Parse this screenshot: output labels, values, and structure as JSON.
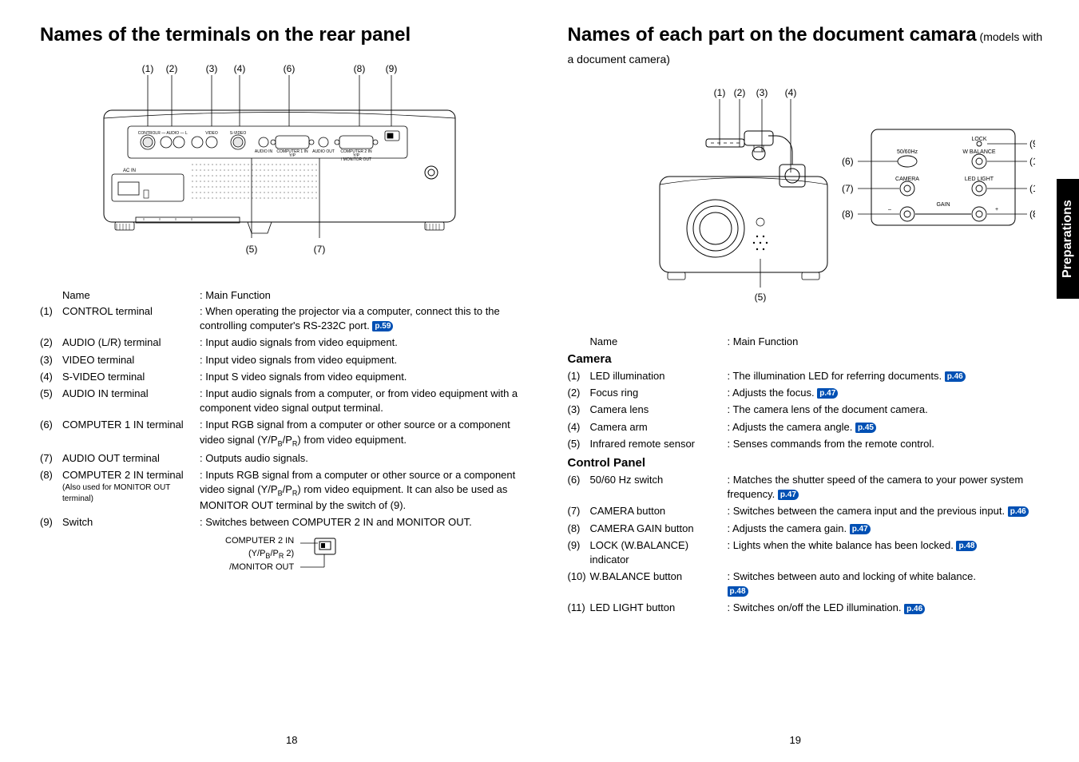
{
  "left": {
    "title": "Names of the terminals on the rear panel",
    "tableHeader": {
      "name": "Name",
      "function": ": Main Function"
    },
    "rows": [
      {
        "num": "(1)",
        "name": "CONTROL terminal",
        "func": ": When operating the projector via a computer, connect this to the controlling computer's RS-232C port.",
        "pref": "p.59"
      },
      {
        "num": "(2)",
        "name": "AUDIO (L/R) terminal",
        "func": ": Input audio signals from video equipment."
      },
      {
        "num": "(3)",
        "name": "VIDEO terminal",
        "func": ": Input video signals from video equipment."
      },
      {
        "num": "(4)",
        "name": "S-VIDEO terminal",
        "func": ": Input S video signals from video equipment."
      },
      {
        "num": "(5)",
        "name": "AUDIO IN terminal",
        "func": ": Input audio signals from a computer, or from video equipment with a component video signal output terminal."
      },
      {
        "num": "(6)",
        "name": "COMPUTER 1 IN terminal",
        "func": ": Input RGB signal from a computer or other source or a component video signal (Y/P",
        "funcTail": ") from video equipment.",
        "sub1": "B",
        "sub2": "R",
        "mid": "/P"
      },
      {
        "num": "(7)",
        "name": "AUDIO OUT terminal",
        "func": ": Outputs audio signals."
      },
      {
        "num": "(8)",
        "name": "COMPUTER 2 IN terminal",
        "note": "(Also used for MONITOR OUT terminal)",
        "func": ": Inputs RGB signal from a computer or other source or a component video signal (Y/P",
        "funcTail": ") rom video equipment. It can also be used as MONITOR OUT terminal by the switch of (9).",
        "sub1": "B",
        "sub2": "R",
        "mid": "/P"
      },
      {
        "num": "(9)",
        "name": "Switch",
        "func": ": Switches between COMPUTER 2 IN and MONITOR OUT."
      }
    ],
    "switchAnnot": {
      "line1a": "COMPUTER 2 IN",
      "line1b": "(Y/P",
      "line1c": "/P",
      "line1d": " 2)",
      "sub1": "B",
      "sub2": "R",
      "line2": "/MONITOR OUT"
    },
    "pageNum": "18"
  },
  "right": {
    "title": "Names of each part on the document camara",
    "subtitle": " (models with a document camera)",
    "tableHeader": {
      "name": "Name",
      "function": ": Main Function"
    },
    "cameraHead": "Camera",
    "cameraRows": [
      {
        "num": "(1)",
        "name": "LED illumination",
        "func": ": The illumination LED for referring documents.",
        "pref": "p.46"
      },
      {
        "num": "(2)",
        "name": "Focus ring",
        "func": ": Adjusts the focus.",
        "pref": "p.47"
      },
      {
        "num": "(3)",
        "name": "Camera lens",
        "func": ": The camera lens of the document camera."
      },
      {
        "num": "(4)",
        "name": "Camera arm",
        "func": ": Adjusts the camera angle.",
        "pref": "p.45"
      },
      {
        "num": "(5)",
        "name": "Infrared remote sensor",
        "func": ": Senses commands from the remote control."
      }
    ],
    "controlHead": "Control Panel",
    "controlRows": [
      {
        "num": "(6)",
        "name": "50/60 Hz switch",
        "func": ": Matches the shutter speed of the camera to your power system frequency.",
        "pref": "p.47"
      },
      {
        "num": "(7)",
        "name": "CAMERA button",
        "func": ": Switches between the camera input and the previous input.",
        "pref": "p.46"
      },
      {
        "num": "(8)",
        "name": "CAMERA GAIN button",
        "func": ": Adjusts the camera gain.",
        "pref": "p.47"
      },
      {
        "num": "(9)",
        "name": "LOCK (W.BALANCE) indicator",
        "func": ": Lights when the white balance has been locked.",
        "pref": "p.48"
      },
      {
        "num": "(10)",
        "name": "W.BALANCE button",
        "func": ": Switches between auto and locking of white balance.",
        "pref": "p.48",
        "prefNewLine": true
      },
      {
        "num": "(11)",
        "name": "LED LIGHT button",
        "func": ": Switches on/off the LED illumination.",
        "pref": "p.46"
      }
    ],
    "pageNum": "19",
    "sideTab": "Preparations"
  },
  "diagramLabels": {
    "rearTop": [
      "(1)",
      "(2)",
      "(3)",
      "(4)",
      "(6)",
      "(8)",
      "(9)"
    ],
    "rearBottom": [
      "(5)",
      "(7)"
    ],
    "camTop": [
      "(1)",
      "(2)",
      "(3)",
      "(4)"
    ],
    "camBottom": "(5)",
    "camPanelLeft": [
      "(6)",
      "(7)",
      "(8)"
    ],
    "camPanelRight": [
      "(9)",
      "(10)",
      "(11)",
      "(8)"
    ],
    "panelText": [
      "LOCK",
      "50/60Hz",
      "W BALANCE",
      "CAMERA",
      "LED LIGHT",
      "–",
      "GAIN",
      "+"
    ]
  }
}
